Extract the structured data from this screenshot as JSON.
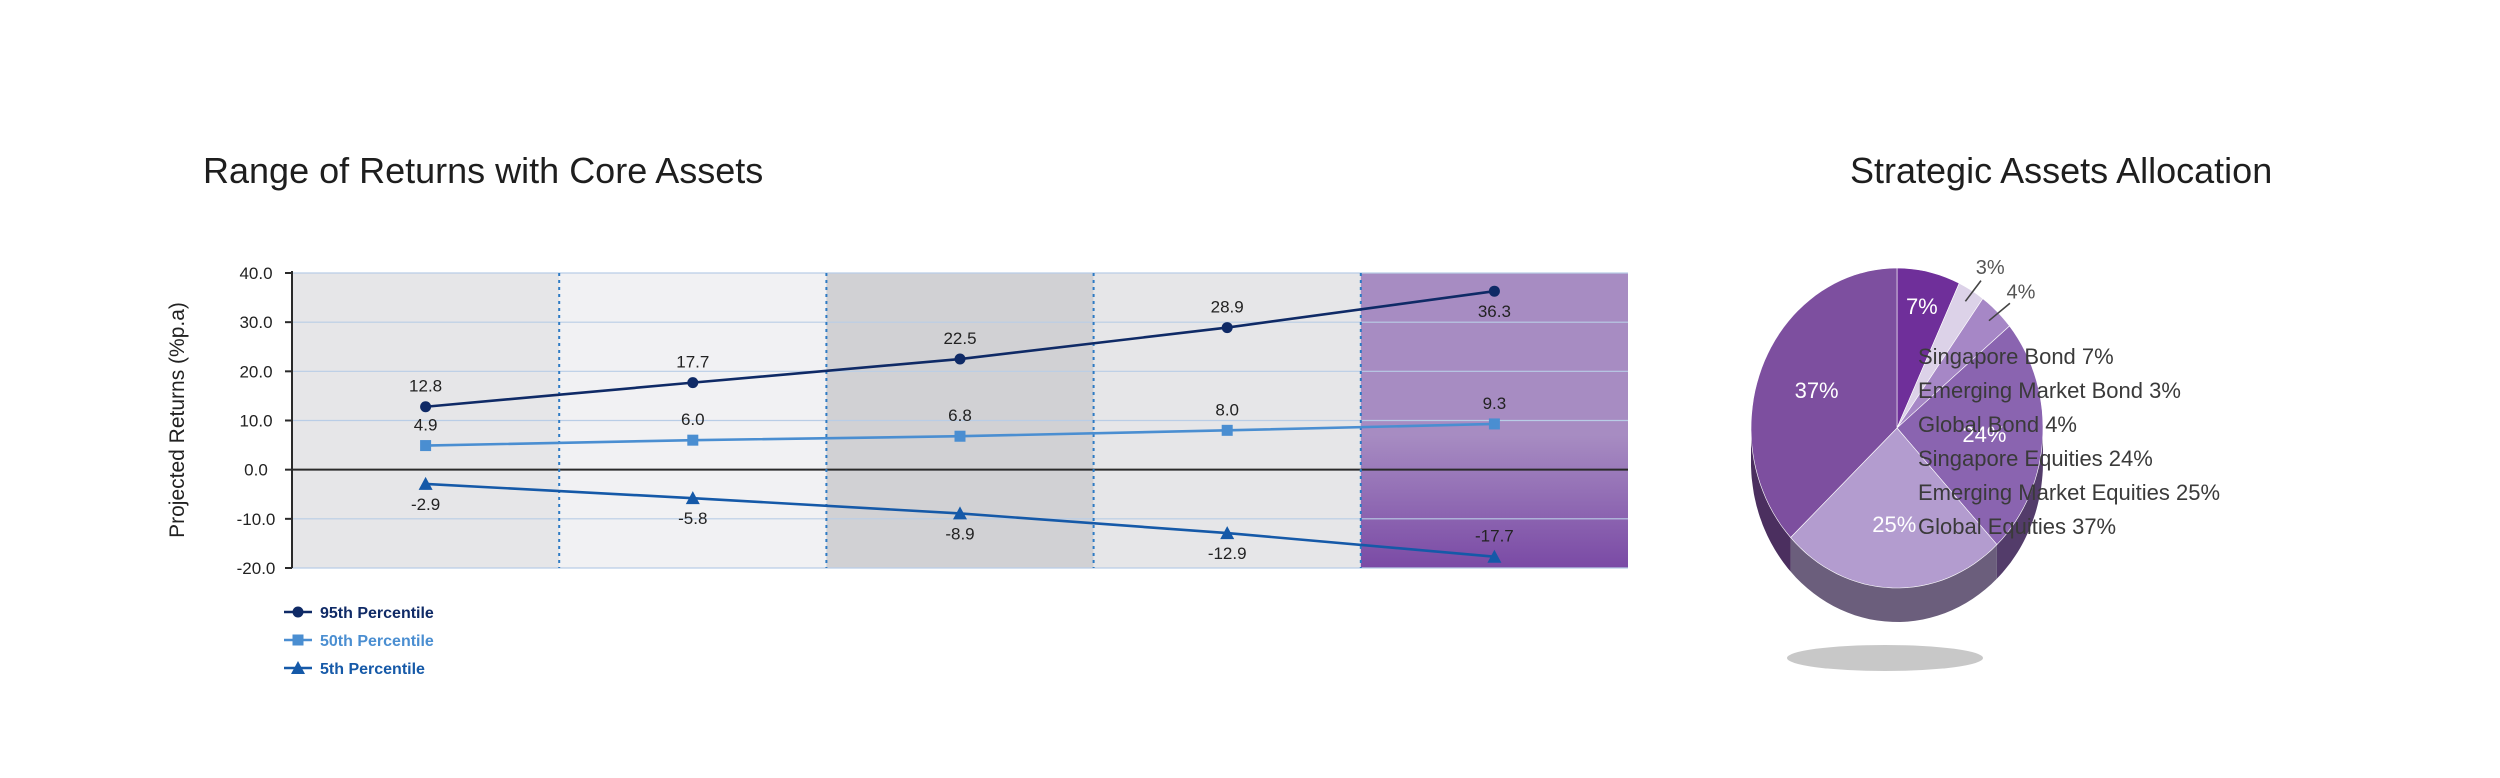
{
  "line_title": "Range of Returns with Core Assets",
  "pie_title": "Strategic Assets Allocation",
  "chart_data": [
    {
      "type": "line",
      "title": "Range of Returns with Core Assets",
      "ylabel": "Projected Returns (%p.a)",
      "xlabel": "",
      "ylim": [
        -20,
        40
      ],
      "yticks": [
        "40.0",
        "30.0",
        "20.0",
        "10.0",
        "0.0",
        "-10.0",
        "-20.0"
      ],
      "ytick_values": [
        40,
        30,
        20,
        10,
        0,
        -10,
        -20
      ],
      "x": [
        1,
        2,
        3,
        4,
        5
      ],
      "grid": true,
      "legend_position": "bottom-left",
      "band_colors": [
        "#e6e6e8",
        "#f1f1f3",
        "#d1d1d4",
        "#e6e6e8",
        "#a78cc2"
      ],
      "series": [
        {
          "name": "95th Percentile",
          "values": [
            12.8,
            17.7,
            22.5,
            28.9,
            36.3
          ],
          "labels": [
            "12.8",
            "17.7",
            "22.5",
            "28.9",
            "36.3"
          ],
          "color": "#0f2a66",
          "marker": "circle"
        },
        {
          "name": "50th Percentile",
          "values": [
            4.9,
            6.0,
            6.8,
            8.0,
            9.3
          ],
          "labels": [
            "4.9",
            "6.0",
            "6.8",
            "8.0",
            "9.3"
          ],
          "color": "#4a8ed1",
          "marker": "square"
        },
        {
          "name": "5th Percentile",
          "values": [
            -2.9,
            -5.8,
            -8.9,
            -12.9,
            -17.7
          ],
          "labels": [
            "-2.9",
            "-5.8",
            "-8.9",
            "-12.9",
            "-17.7"
          ],
          "color": "#1559a8",
          "marker": "triangle"
        }
      ]
    },
    {
      "type": "pie",
      "title": "Strategic Assets Allocation",
      "slices": [
        {
          "label": "Singapore Bond",
          "value": 7,
          "pct_label": "7%",
          "color": "#6f2f9a"
        },
        {
          "label": "Emerging Market Bond",
          "value": 3,
          "pct_label": "3%",
          "color": "#dcd2e8"
        },
        {
          "label": "Global Bond",
          "value": 4,
          "pct_label": "4%",
          "color": "#a687c6"
        },
        {
          "label": "Singapore Equities",
          "value": 24,
          "pct_label": "24%",
          "color": "#8a64b0"
        },
        {
          "label": "Emerging Market Equities",
          "value": 25,
          "pct_label": "25%",
          "color": "#b39ccf"
        },
        {
          "label": "Global Equities",
          "value": 37,
          "pct_label": "37%",
          "color": "#7d4f9f"
        }
      ],
      "legend": [
        "Singapore Bond 7%",
        "Emerging Market Bond 3%",
        "Global Bond 4%",
        "Singapore Equities 24%",
        "Emerging Market Equities 25%",
        "Global Equities 37%"
      ],
      "legend_position": "right"
    }
  ]
}
